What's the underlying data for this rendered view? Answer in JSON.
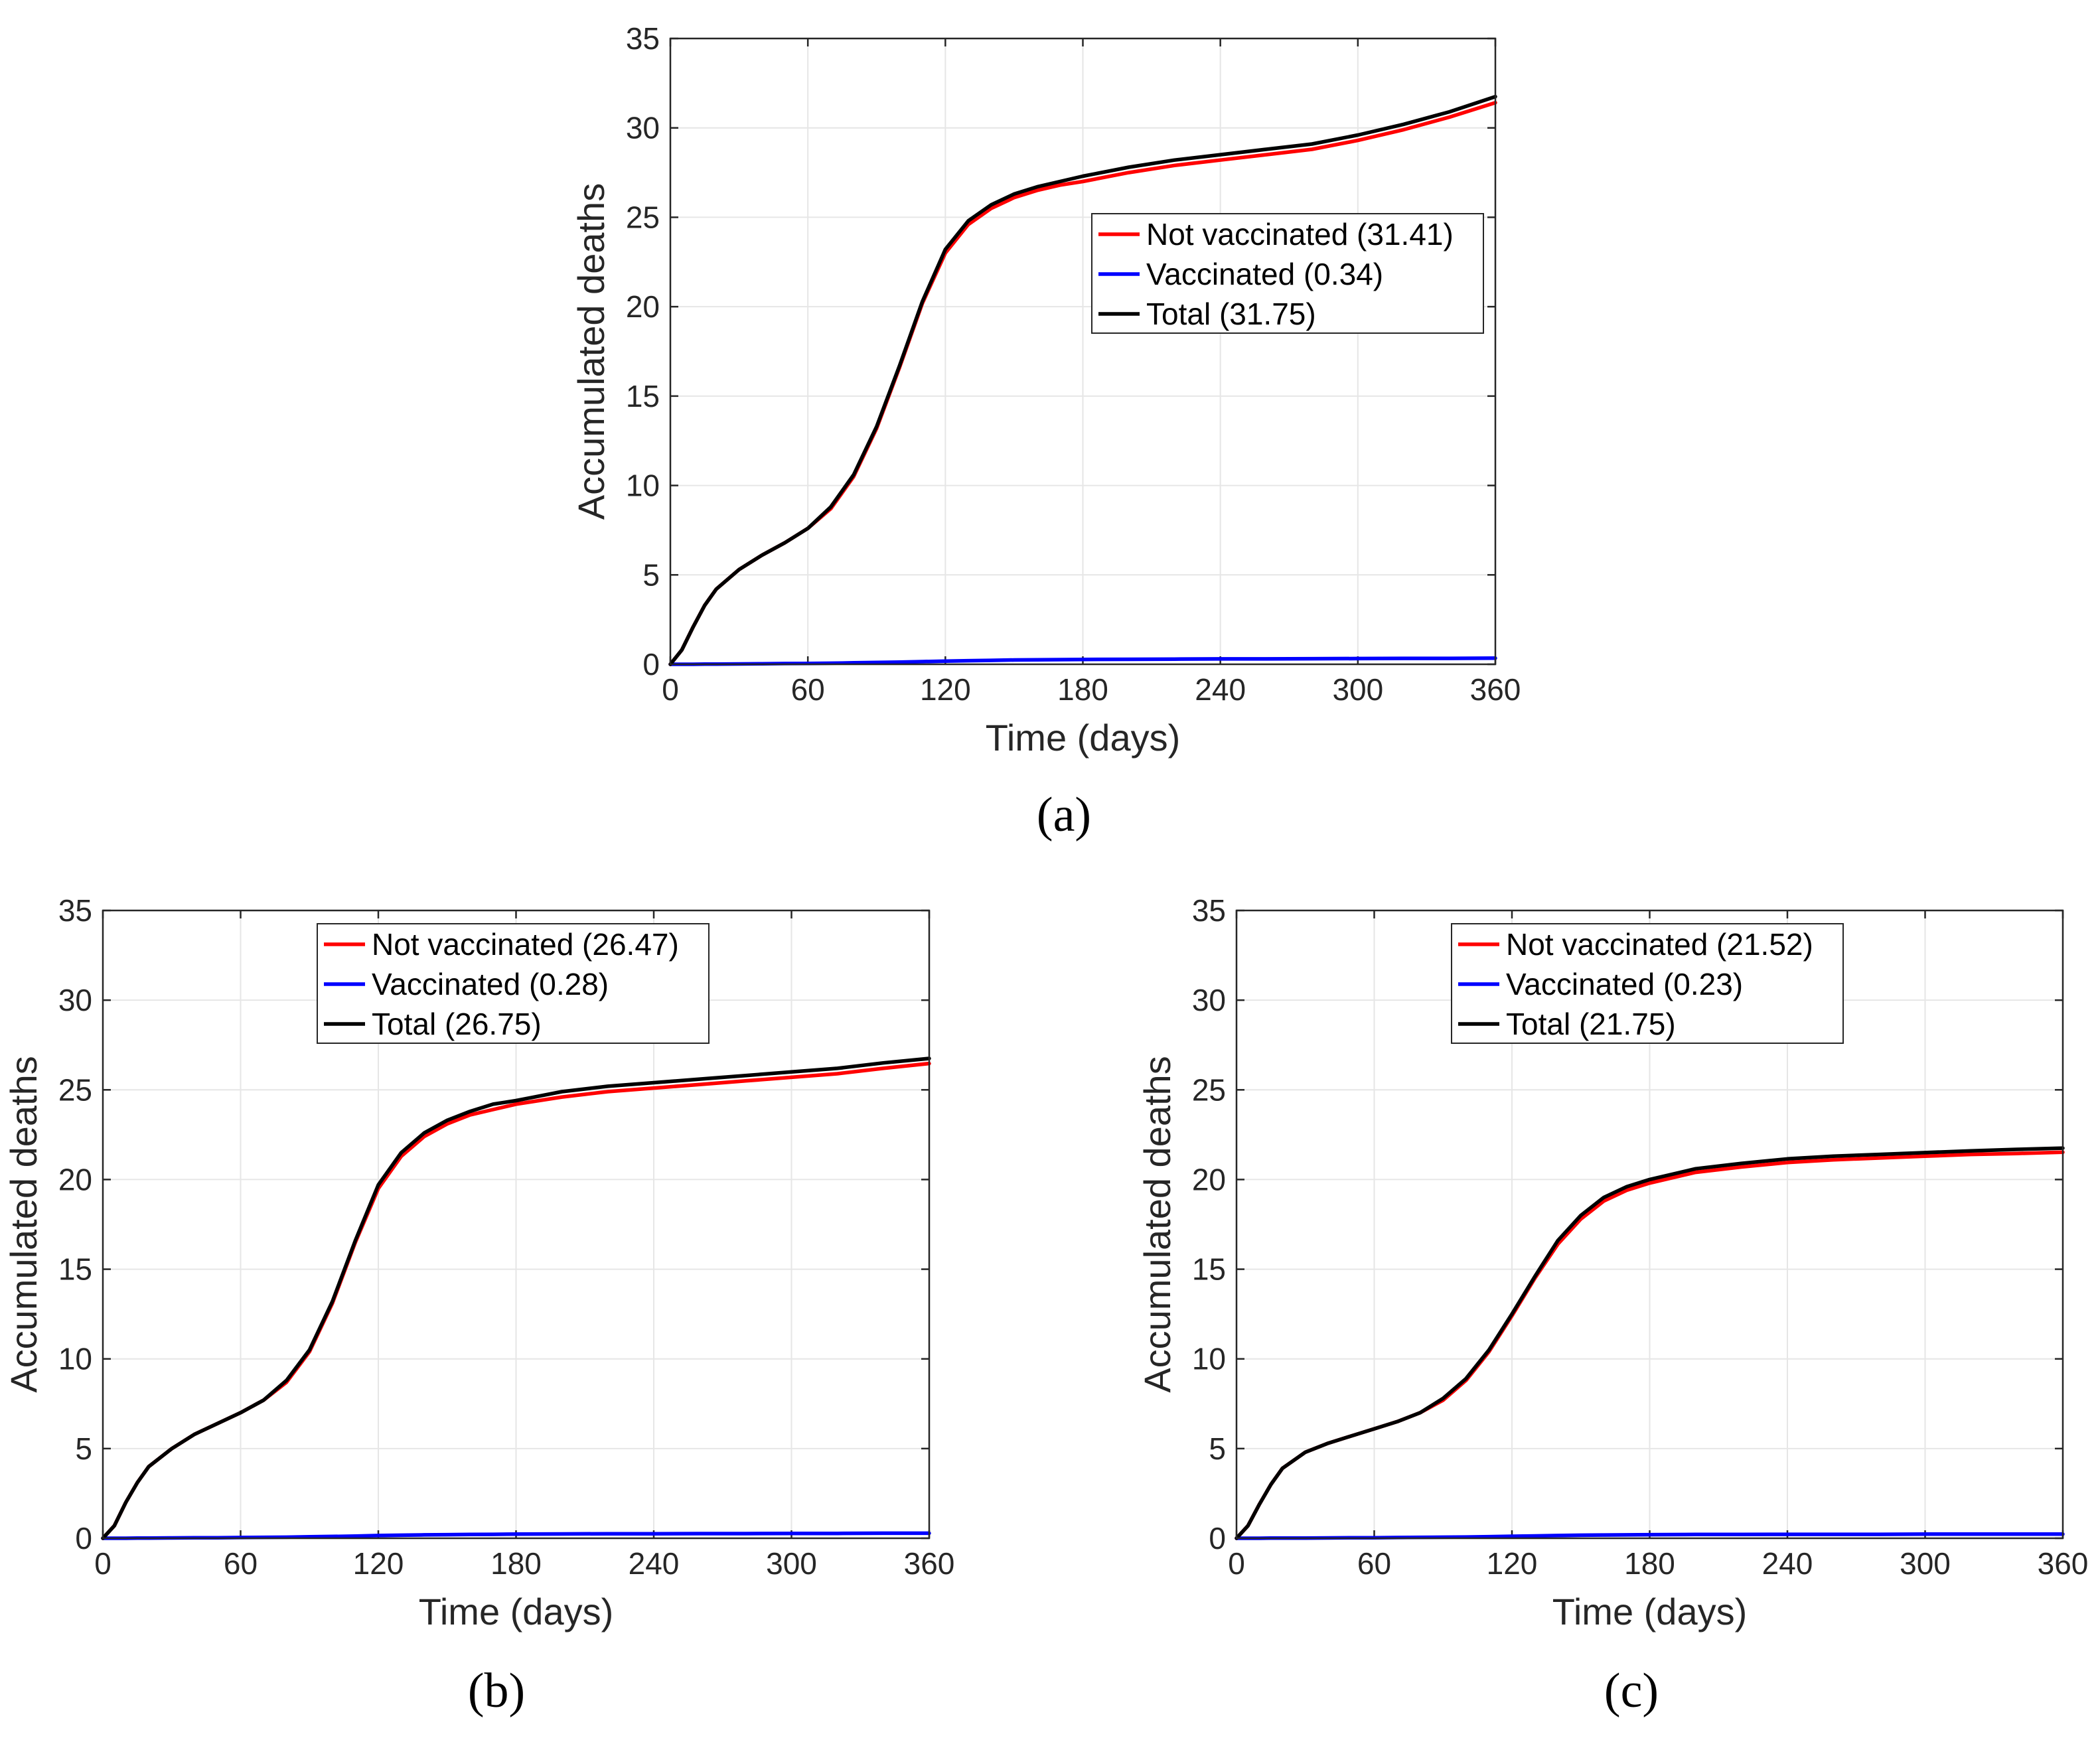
{
  "figure_labels": [
    "(a)",
    "(b)",
    "(c)"
  ],
  "colors": {
    "not_vaccinated": "#ff0000",
    "vaccinated": "#0000ff",
    "total": "#000000"
  },
  "chart_data": [
    {
      "type": "line",
      "panel": "(a)",
      "xlabel": "Time (days)",
      "ylabel": "Accumulated deaths",
      "xlim": [
        0,
        360
      ],
      "ylim": [
        0,
        35
      ],
      "xticks": [
        0,
        60,
        120,
        180,
        240,
        300,
        360
      ],
      "yticks": [
        0,
        5,
        10,
        15,
        20,
        25,
        30,
        35
      ],
      "grid": true,
      "legend_position": "center-right",
      "x": [
        0,
        5,
        10,
        15,
        20,
        30,
        40,
        50,
        60,
        70,
        80,
        90,
        100,
        110,
        120,
        130,
        140,
        150,
        160,
        170,
        180,
        200,
        220,
        240,
        260,
        280,
        300,
        320,
        340,
        360
      ],
      "series": [
        {
          "name": "Not vaccinated",
          "legend": "Not vaccinated (31.41)",
          "color": "#ff0000",
          "values": [
            0,
            0.8,
            2.1,
            3.3,
            4.2,
            5.3,
            6.1,
            6.8,
            7.6,
            8.7,
            10.5,
            13.2,
            16.6,
            20.2,
            23.0,
            24.6,
            25.5,
            26.1,
            26.5,
            26.8,
            27.0,
            27.5,
            27.9,
            28.2,
            28.5,
            28.8,
            29.3,
            29.9,
            30.6,
            31.41
          ]
        },
        {
          "name": "Vaccinated",
          "legend": "Vaccinated (0.34)",
          "color": "#0000ff",
          "values": [
            0,
            0,
            0,
            0.01,
            0.01,
            0.02,
            0.03,
            0.04,
            0.05,
            0.06,
            0.08,
            0.1,
            0.12,
            0.15,
            0.18,
            0.2,
            0.22,
            0.24,
            0.25,
            0.26,
            0.27,
            0.28,
            0.29,
            0.3,
            0.3,
            0.31,
            0.32,
            0.33,
            0.33,
            0.34
          ]
        },
        {
          "name": "Total",
          "legend": "Total (31.75)",
          "color": "#000000",
          "values": [
            0,
            0.8,
            2.1,
            3.3,
            4.2,
            5.3,
            6.1,
            6.8,
            7.6,
            8.8,
            10.6,
            13.3,
            16.7,
            20.3,
            23.2,
            24.8,
            25.7,
            26.3,
            26.7,
            27.0,
            27.3,
            27.8,
            28.2,
            28.5,
            28.8,
            29.1,
            29.6,
            30.2,
            30.9,
            31.75
          ]
        }
      ]
    },
    {
      "type": "line",
      "panel": "(b)",
      "xlabel": "Time (days)",
      "ylabel": "Accumulated deaths",
      "xlim": [
        0,
        360
      ],
      "ylim": [
        0,
        35
      ],
      "xticks": [
        0,
        60,
        120,
        180,
        240,
        300,
        360
      ],
      "yticks": [
        0,
        5,
        10,
        15,
        20,
        25,
        30,
        35
      ],
      "grid": true,
      "legend_position": "top-center",
      "x": [
        0,
        5,
        10,
        15,
        20,
        30,
        40,
        50,
        60,
        70,
        80,
        90,
        100,
        110,
        120,
        130,
        140,
        150,
        160,
        170,
        180,
        200,
        220,
        240,
        260,
        280,
        300,
        320,
        340,
        360
      ],
      "series": [
        {
          "name": "Not vaccinated",
          "legend": "Not vaccinated (26.47)",
          "color": "#ff0000",
          "values": [
            0,
            0.7,
            2.0,
            3.1,
            4.0,
            5.0,
            5.8,
            6.4,
            7.0,
            7.7,
            8.7,
            10.4,
            13.1,
            16.5,
            19.5,
            21.3,
            22.4,
            23.1,
            23.6,
            23.9,
            24.2,
            24.6,
            24.9,
            25.1,
            25.3,
            25.5,
            25.7,
            25.9,
            26.2,
            26.47
          ]
        },
        {
          "name": "Vaccinated",
          "legend": "Vaccinated (0.28)",
          "color": "#0000ff",
          "values": [
            0,
            0,
            0,
            0.01,
            0.01,
            0.02,
            0.03,
            0.03,
            0.04,
            0.05,
            0.06,
            0.08,
            0.1,
            0.12,
            0.15,
            0.17,
            0.19,
            0.2,
            0.21,
            0.22,
            0.23,
            0.24,
            0.25,
            0.25,
            0.26,
            0.26,
            0.27,
            0.27,
            0.28,
            0.28
          ]
        },
        {
          "name": "Total",
          "legend": "Total (26.75)",
          "color": "#000000",
          "values": [
            0,
            0.7,
            2.0,
            3.1,
            4.0,
            5.0,
            5.8,
            6.4,
            7.0,
            7.7,
            8.8,
            10.5,
            13.2,
            16.6,
            19.7,
            21.5,
            22.6,
            23.3,
            23.8,
            24.2,
            24.4,
            24.9,
            25.2,
            25.4,
            25.6,
            25.8,
            26.0,
            26.2,
            26.5,
            26.75
          ]
        }
      ]
    },
    {
      "type": "line",
      "panel": "(c)",
      "xlabel": "Time (days)",
      "ylabel": "Accumulated deaths",
      "xlim": [
        0,
        360
      ],
      "ylim": [
        0,
        35
      ],
      "xticks": [
        0,
        60,
        120,
        180,
        240,
        300,
        360
      ],
      "yticks": [
        0,
        5,
        10,
        15,
        20,
        25,
        30,
        35
      ],
      "grid": true,
      "legend_position": "top-center",
      "x": [
        0,
        5,
        10,
        15,
        20,
        30,
        40,
        50,
        60,
        70,
        80,
        90,
        100,
        110,
        120,
        130,
        140,
        150,
        160,
        170,
        180,
        200,
        220,
        240,
        260,
        280,
        300,
        320,
        340,
        360
      ],
      "series": [
        {
          "name": "Not vaccinated",
          "legend": "Not vaccinated (21.52)",
          "color": "#ff0000",
          "values": [
            0,
            0.7,
            1.9,
            3.0,
            3.9,
            4.8,
            5.3,
            5.7,
            6.1,
            6.5,
            7.0,
            7.7,
            8.8,
            10.4,
            12.4,
            14.5,
            16.4,
            17.8,
            18.8,
            19.4,
            19.8,
            20.4,
            20.7,
            20.95,
            21.1,
            21.2,
            21.3,
            21.4,
            21.45,
            21.52
          ]
        },
        {
          "name": "Vaccinated",
          "legend": "Vaccinated (0.23)",
          "color": "#0000ff",
          "values": [
            0,
            0,
            0,
            0.01,
            0.01,
            0.01,
            0.02,
            0.03,
            0.03,
            0.04,
            0.05,
            0.06,
            0.07,
            0.09,
            0.11,
            0.13,
            0.15,
            0.17,
            0.18,
            0.19,
            0.2,
            0.21,
            0.21,
            0.22,
            0.22,
            0.22,
            0.23,
            0.23,
            0.23,
            0.23
          ]
        },
        {
          "name": "Total",
          "legend": "Total (21.75)",
          "color": "#000000",
          "values": [
            0,
            0.7,
            1.9,
            3.0,
            3.9,
            4.8,
            5.3,
            5.7,
            6.1,
            6.5,
            7.0,
            7.8,
            8.9,
            10.5,
            12.5,
            14.6,
            16.6,
            18.0,
            19.0,
            19.6,
            20.0,
            20.6,
            20.9,
            21.15,
            21.3,
            21.4,
            21.5,
            21.6,
            21.68,
            21.75
          ]
        }
      ]
    }
  ]
}
